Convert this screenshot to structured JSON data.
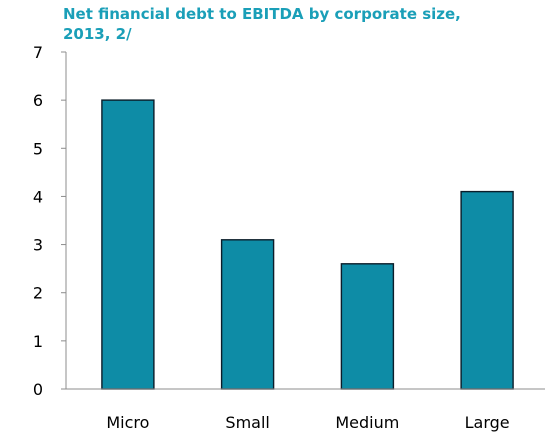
{
  "chart_data": {
    "type": "bar",
    "title_lines": [
      "Net financial debt to EBITDA by corporate size,",
      "2013, 2/"
    ],
    "categories": [
      "Micro",
      "Small",
      "Medium",
      "Large"
    ],
    "values": [
      6.0,
      3.1,
      2.6,
      4.1
    ],
    "xlabel": "",
    "ylabel": "",
    "ylim": [
      0,
      7
    ],
    "yticks": [
      "0",
      "1",
      "2",
      "3",
      "4",
      "5",
      "6",
      "7"
    ],
    "grid": false,
    "legend": "none",
    "bar_color": "#0e8ca6",
    "bar_outline_color": "#0b1d2a",
    "title_color": "#1a9fb8"
  }
}
